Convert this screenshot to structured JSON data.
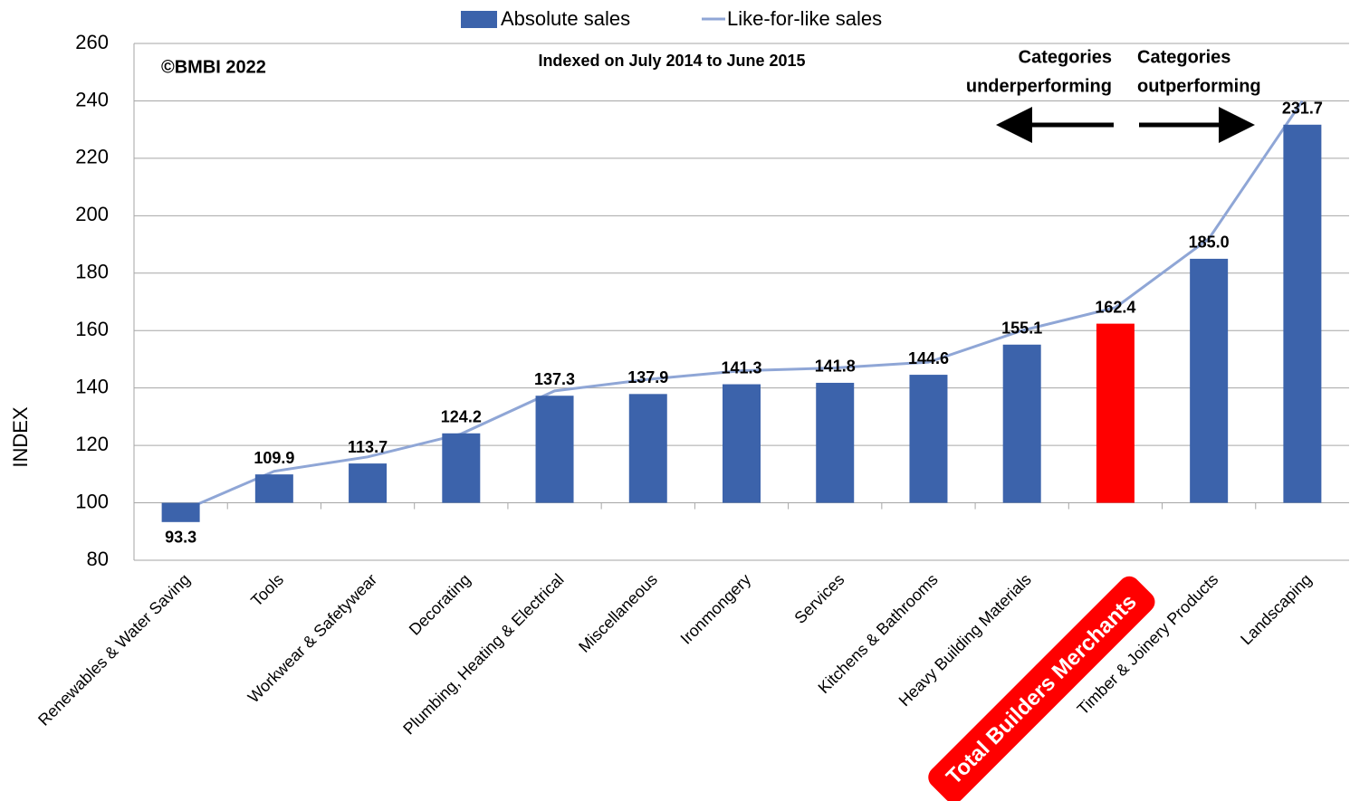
{
  "chart_data": {
    "type": "bar",
    "categories": [
      "Renewables & Water Saving",
      "Tools",
      "Workwear & Safetywear",
      "Decorating",
      "Plumbing, Heating & Electrical",
      "Miscellaneous",
      "Ironmongery",
      "Services",
      "Kitchens & Bathrooms",
      "Heavy Building Materials",
      "Total Builders Merchants",
      "Timber & Joinery Products",
      "Landscaping"
    ],
    "series": [
      {
        "name": "Absolute sales",
        "type": "bar",
        "values": [
          93.3,
          109.9,
          113.7,
          124.2,
          137.3,
          137.9,
          141.3,
          141.8,
          144.6,
          155.1,
          162.4,
          185.0,
          231.7
        ],
        "value_labels": [
          "93.3",
          "109.9",
          "113.7",
          "124.2",
          "137.3",
          "137.9",
          "141.3",
          "141.8",
          "144.6",
          "155.1",
          "162.4",
          "185.0",
          "231.7"
        ],
        "colors": [
          "#3c63ab",
          "#3c63ab",
          "#3c63ab",
          "#3c63ab",
          "#3c63ab",
          "#3c63ab",
          "#3c63ab",
          "#3c63ab",
          "#3c63ab",
          "#3c63ab",
          "#ff0000",
          "#3c63ab",
          "#3c63ab"
        ]
      },
      {
        "name": "Like-for-like sales",
        "type": "line",
        "color": "#8fa6d6",
        "values": [
          97,
          111,
          116,
          124,
          139,
          143,
          146,
          147,
          149,
          160,
          168,
          192,
          240
        ]
      }
    ],
    "bar_base": 100,
    "ylim": [
      80,
      260
    ],
    "yticks": [
      80,
      100,
      120,
      140,
      160,
      180,
      200,
      220,
      240,
      260
    ],
    "ylabel": "INDEX",
    "grid": true,
    "highlight_label": {
      "index": 10,
      "color": "#ff0000"
    },
    "annotations": {
      "copyright": "©BMBI 2022",
      "subtitle": "Indexed on July 2014 to June 2015",
      "under": [
        "Categories",
        "underperforming"
      ],
      "out": [
        "Categories",
        "outperforming"
      ]
    }
  }
}
